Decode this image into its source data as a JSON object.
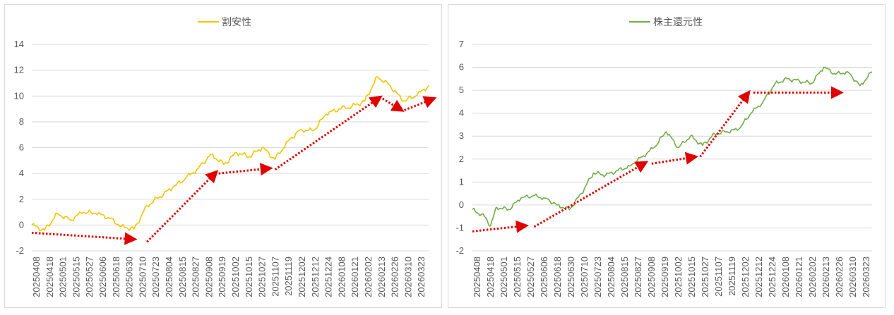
{
  "chart_data": [
    {
      "type": "line",
      "title": "",
      "legend": {
        "position": "top",
        "entries": [
          "割安性"
        ]
      },
      "series": [
        {
          "name": "割安性",
          "color": "#f2c500"
        }
      ],
      "x_tick_labels": [
        "20250408",
        "20250418",
        "20250501",
        "20250515",
        "20250527",
        "20250606",
        "20250618",
        "20250630",
        "20250710",
        "20250723",
        "20250804",
        "20250815",
        "20250827",
        "20250908",
        "20250919",
        "20251002",
        "20251015",
        "20251027",
        "20251107",
        "20251119",
        "20251202",
        "20251212",
        "20251224",
        "20260108",
        "20260121",
        "20260202",
        "20260213",
        "20260226",
        "20260310",
        "20260323"
      ],
      "y_ticks": [
        -2,
        0,
        2,
        4,
        6,
        8,
        10,
        12,
        14
      ],
      "ylim": [
        -2,
        14
      ],
      "grid": true,
      "anchors": [
        [
          0,
          0.0
        ],
        [
          1,
          -0.4
        ],
        [
          2,
          0.9
        ],
        [
          3,
          0.4
        ],
        [
          4,
          1.0
        ],
        [
          5,
          0.9
        ],
        [
          6,
          0.6
        ],
        [
          7,
          -0.1
        ],
        [
          8,
          -0.3
        ],
        [
          9,
          1.5
        ],
        [
          10,
          2.2
        ],
        [
          11,
          2.9
        ],
        [
          12,
          3.6
        ],
        [
          13,
          4.4
        ],
        [
          14,
          5.5
        ],
        [
          15,
          4.7
        ],
        [
          16,
          5.6
        ],
        [
          17,
          5.3
        ],
        [
          18,
          6.0
        ],
        [
          19,
          5.1
        ],
        [
          20,
          6.5
        ],
        [
          21,
          7.4
        ],
        [
          22,
          7.3
        ],
        [
          23,
          8.6
        ],
        [
          24,
          9.0
        ],
        [
          25,
          9.2
        ],
        [
          26,
          9.6
        ],
        [
          27,
          11.5
        ],
        [
          28,
          10.8
        ],
        [
          29,
          9.6
        ],
        [
          30,
          10.0
        ],
        [
          31,
          10.8
        ]
      ],
      "annotation_arrows": [
        {
          "from": [
            0,
            -0.6
          ],
          "to": [
            8,
            -1.1
          ]
        },
        {
          "from": [
            9,
            -1.3
          ],
          "to": [
            14.4,
            4.1
          ]
        },
        {
          "from": [
            14.6,
            4.0
          ],
          "to": [
            18.6,
            4.4
          ]
        },
        {
          "from": [
            19,
            4.3
          ],
          "to": [
            27.2,
            9.9
          ]
        },
        {
          "from": [
            27.4,
            9.8
          ],
          "to": [
            28.9,
            8.9
          ]
        },
        {
          "from": [
            29.1,
            8.9
          ],
          "to": [
            31.4,
            9.8
          ]
        }
      ]
    },
    {
      "type": "line",
      "title": "",
      "legend": {
        "position": "top",
        "entries": [
          "株主還元性"
        ]
      },
      "series": [
        {
          "name": "株主還元性",
          "color": "#70ad47"
        }
      ],
      "x_tick_labels": [
        "20250408",
        "20250418",
        "20250501",
        "20250515",
        "20250527",
        "20250606",
        "20250618",
        "20250630",
        "20250710",
        "20250723",
        "20250804",
        "20250815",
        "20250827",
        "20250908",
        "20250919",
        "20251002",
        "20251015",
        "20251027",
        "20251107",
        "20251119",
        "20251202",
        "20251212",
        "20251224",
        "20260108",
        "20260121",
        "20260202",
        "20260213",
        "20260226",
        "20260310",
        "20260323"
      ],
      "y_ticks": [
        -2,
        -1,
        0,
        1,
        2,
        3,
        4,
        5,
        6,
        7
      ],
      "ylim": [
        -2,
        7
      ],
      "grid": true,
      "anchors": [
        [
          0,
          -0.2
        ],
        [
          1,
          -0.5
        ],
        [
          1.5,
          -0.9
        ],
        [
          2,
          -0.1
        ],
        [
          3,
          -0.2
        ],
        [
          4,
          0.3
        ],
        [
          5,
          0.4
        ],
        [
          6,
          0.3
        ],
        [
          7,
          0.0
        ],
        [
          8,
          -0.2
        ],
        [
          9,
          0.5
        ],
        [
          10,
          1.4
        ],
        [
          11,
          1.3
        ],
        [
          12,
          1.5
        ],
        [
          13,
          1.7
        ],
        [
          14,
          2.1
        ],
        [
          15,
          2.5
        ],
        [
          16,
          3.2
        ],
        [
          17,
          2.5
        ],
        [
          18,
          3.0
        ],
        [
          19,
          2.6
        ],
        [
          20,
          3.1
        ],
        [
          21,
          3.2
        ],
        [
          22,
          3.3
        ],
        [
          23,
          4.0
        ],
        [
          24,
          4.5
        ],
        [
          25,
          5.3
        ],
        [
          26,
          5.5
        ],
        [
          27,
          5.4
        ],
        [
          28,
          5.3
        ],
        [
          29,
          6.0
        ],
        [
          30,
          5.7
        ],
        [
          31,
          5.8
        ],
        [
          32,
          5.2
        ],
        [
          33,
          5.8
        ]
      ],
      "annotation_arrows": [
        {
          "from": [
            0,
            -1.15
          ],
          "to": [
            4.4,
            -0.9
          ]
        },
        {
          "from": [
            5.1,
            -0.95
          ],
          "to": [
            14.3,
            1.85
          ]
        },
        {
          "from": [
            14.8,
            1.8
          ],
          "to": [
            18.4,
            2.1
          ]
        },
        {
          "from": [
            18.8,
            2.1
          ],
          "to": [
            22.8,
            4.9
          ]
        },
        {
          "from": [
            23.2,
            4.9
          ],
          "to": [
            30.4,
            4.9
          ]
        }
      ]
    }
  ]
}
